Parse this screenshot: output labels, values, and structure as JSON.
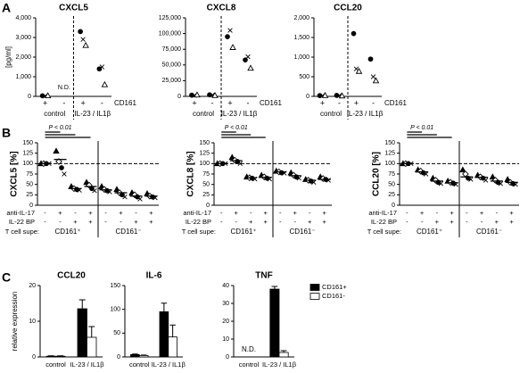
{
  "panels": [
    "A",
    "B",
    "C"
  ],
  "chart_data": [
    {
      "type": "scatter",
      "title": "CXCL5",
      "ylabel": "[pg/ml]",
      "categories": [
        "+",
        "-",
        "+",
        "-"
      ],
      "row_label": "CD161",
      "group_labels": [
        "control",
        "IL-23 / IL1β"
      ],
      "separator": "dashed",
      "ylim": [
        0,
        4000
      ],
      "yticks": [
        0,
        {
          "value": 1000,
          "label": "1,000"
        },
        {
          "value": 2000,
          "label": "2,000"
        },
        {
          "value": 3000,
          "label": "3,000"
        },
        {
          "value": 4000,
          "label": "4,000"
        }
      ],
      "series": [
        {
          "marker": "circle",
          "filled": true,
          "values": [
            30,
            null,
            3300,
            1400
          ],
          "value_labels": [
            null,
            "N.D.",
            null,
            null
          ]
        },
        {
          "marker": "cross",
          "filled": false,
          "values": [
            20,
            null,
            2900,
            1500
          ]
        },
        {
          "marker": "triangle",
          "filled": false,
          "values": [
            40,
            null,
            2600,
            600
          ]
        }
      ]
    },
    {
      "type": "scatter",
      "title": "CXCL8",
      "categories": [
        "+",
        "-",
        "+",
        "-"
      ],
      "row_label": "CD161",
      "group_labels": [
        "control",
        "IL-23 / IL1β"
      ],
      "separator": "dashed",
      "ylim": [
        0,
        125000
      ],
      "yticks": [
        0,
        {
          "value": 25000,
          "label": "25,000"
        },
        {
          "value": 50000,
          "label": "50,000"
        },
        {
          "value": 75000,
          "label": "75,000"
        },
        {
          "value": 100000,
          "label": "100,000"
        },
        {
          "value": 125000,
          "label": "125,000"
        }
      ],
      "series": [
        {
          "marker": "circle",
          "filled": true,
          "values": [
            2000,
            2500,
            95000,
            58000
          ]
        },
        {
          "marker": "cross",
          "filled": false,
          "values": [
            1500,
            2000,
            105000,
            63000
          ]
        },
        {
          "marker": "triangle",
          "filled": false,
          "values": [
            2500,
            1500,
            78000,
            45000
          ]
        }
      ]
    },
    {
      "type": "scatter",
      "title": "CCL20",
      "categories": [
        "+",
        "-",
        "+",
        "-"
      ],
      "row_label": "CD161",
      "group_labels": [
        "control",
        "IL-23 / IL1β"
      ],
      "separator": "dashed",
      "ylim": [
        0,
        2000
      ],
      "yticks": [
        0,
        500,
        {
          "value": 1000,
          "label": "1,000"
        },
        {
          "value": 1500,
          "label": "1,500"
        },
        {
          "value": 2000,
          "label": "2,000"
        }
      ],
      "series": [
        {
          "marker": "circle",
          "filled": true,
          "values": [
            20,
            25,
            1600,
            950
          ]
        },
        {
          "marker": "cross",
          "filled": false,
          "values": [
            15,
            20,
            700,
            500
          ]
        },
        {
          "marker": "triangle",
          "filled": false,
          "values": [
            25,
            15,
            640,
            400
          ]
        }
      ]
    },
    {
      "type": "scatter",
      "ylabel": "CXCL5 [%]",
      "ylim": [
        0,
        150
      ],
      "yticks": [
        0,
        25,
        50,
        75,
        100,
        125,
        150
      ],
      "reference_line": 100,
      "separator": "solid",
      "significance": "P < 0.01",
      "rows": [
        {
          "label": "anti-IL-17",
          "values": [
            "-",
            "+",
            "-",
            "+",
            "-",
            "+",
            "-",
            "+"
          ]
        },
        {
          "label": "IL-22 BP",
          "values": [
            "-",
            "-",
            "+",
            "+",
            "-",
            "-",
            "+",
            "+"
          ]
        }
      ],
      "group_row_label": "T cell supe:",
      "group_labels": [
        "CD161⁺",
        "CD161⁻"
      ],
      "means": [
        100,
        110,
        40,
        45,
        37,
        30,
        22,
        22
      ],
      "series": [
        {
          "marker": "triangle",
          "filled": true,
          "values": [
            100,
            130,
            45,
            55,
            45,
            38,
            30,
            28
          ]
        },
        {
          "marker": "diamond",
          "filled": false,
          "values": [
            100,
            105,
            40,
            48,
            38,
            30,
            25,
            22
          ]
        },
        {
          "marker": "circle",
          "filled": true,
          "values": [
            100,
            90,
            38,
            40,
            35,
            25,
            20,
            20
          ]
        },
        {
          "marker": "cross",
          "filled": false,
          "values": [
            100,
            75,
            36,
            35,
            32,
            20,
            15,
            18
          ]
        }
      ]
    },
    {
      "type": "scatter",
      "ylabel": "CXCL8 [%]",
      "ylim": [
        0,
        150
      ],
      "yticks": [
        0,
        25,
        50,
        75,
        100,
        125,
        150
      ],
      "reference_line": 100,
      "separator": "solid",
      "significance": "P < 0.01",
      "rows": [
        {
          "label": "anti-IL-17",
          "values": [
            "-",
            "+",
            "-",
            "+",
            "-",
            "+",
            "-",
            "+"
          ]
        },
        {
          "label": "IL-22 BP",
          "values": [
            "-",
            "-",
            "+",
            "+",
            "-",
            "-",
            "+",
            "+"
          ]
        }
      ],
      "group_row_label": "T cell supe:",
      "group_labels": [
        "CD161⁺",
        "CD161⁻"
      ],
      "means": [
        100,
        107,
        66,
        67,
        80,
        71,
        60,
        62
      ],
      "series": [
        {
          "marker": "triangle",
          "filled": true,
          "values": [
            100,
            115,
            68,
            72,
            82,
            78,
            62,
            68
          ]
        },
        {
          "marker": "diamond",
          "filled": false,
          "values": [
            100,
            108,
            66,
            68,
            80,
            72,
            60,
            64
          ]
        },
        {
          "marker": "circle",
          "filled": true,
          "values": [
            100,
            105,
            65,
            65,
            78,
            68,
            58,
            62
          ]
        },
        {
          "marker": "cross",
          "filled": false,
          "values": [
            100,
            100,
            63,
            63,
            77,
            65,
            55,
            60
          ]
        }
      ]
    },
    {
      "type": "scatter",
      "ylabel": "CCL20 [%]",
      "ylim": [
        0,
        150
      ],
      "yticks": [
        0,
        25,
        50,
        75,
        100,
        125,
        150
      ],
      "reference_line": 100,
      "separator": "solid",
      "significance": "P < 0.01",
      "rows": [
        {
          "label": "anti-IL-17",
          "values": [
            "-",
            "+",
            "-",
            "+",
            "-",
            "+",
            "-",
            "+"
          ]
        },
        {
          "label": "IL-22 BP",
          "values": [
            "-",
            "-",
            "+",
            "+",
            "-",
            "-",
            "+",
            "+"
          ]
        }
      ],
      "group_row_label": "T cell supe:",
      "group_labels": [
        "CD161⁺",
        "CD161⁻"
      ],
      "means": [
        100,
        80,
        58,
        54,
        68,
        67,
        58,
        55
      ],
      "series": [
        {
          "marker": "triangle",
          "filled": true,
          "values": [
            100,
            85,
            65,
            58,
            85,
            72,
            68,
            62
          ]
        },
        {
          "marker": "diamond",
          "filled": false,
          "values": [
            100,
            82,
            60,
            55,
            75,
            68,
            60,
            55
          ]
        },
        {
          "marker": "circle",
          "filled": true,
          "values": [
            100,
            78,
            55,
            53,
            65,
            65,
            55,
            52
          ]
        },
        {
          "marker": "cross",
          "filled": false,
          "values": [
            100,
            75,
            52,
            50,
            62,
            60,
            52,
            50
          ]
        }
      ]
    },
    {
      "type": "bar",
      "title": "CCL20",
      "ylabel": "relative expression",
      "categories": [
        "control",
        "IL-23 / IL1β"
      ],
      "ylim": [
        0,
        20
      ],
      "yticks": [
        0,
        10,
        20
      ],
      "series": [
        {
          "color": "#000000",
          "values": [
            0.2,
            13.5
          ],
          "errors": [
            0.1,
            2.5
          ]
        },
        {
          "color": "#ffffff",
          "values": [
            0.2,
            5.5
          ],
          "errors": [
            0.1,
            3
          ]
        }
      ]
    },
    {
      "type": "bar",
      "title": "IL-6",
      "categories": [
        "control",
        "IL-23 / IL1β"
      ],
      "ylim": [
        0,
        150
      ],
      "yticks": [
        0,
        50,
        100,
        150
      ],
      "series": [
        {
          "color": "#000000",
          "values": [
            5,
            95
          ],
          "errors": [
            1,
            18
          ]
        },
        {
          "color": "#ffffff",
          "values": [
            3,
            42
          ],
          "errors": [
            1,
            25
          ]
        }
      ]
    },
    {
      "type": "bar",
      "title": "TNF",
      "categories": [
        "control",
        "IL-23 / IL1β"
      ],
      "ylim": [
        0,
        40
      ],
      "yticks": [
        0,
        10,
        20,
        30,
        40
      ],
      "legend": true,
      "series": [
        {
          "name": "CD161+",
          "color": "#000000",
          "values": [
            null,
            38
          ],
          "errors": [
            null,
            1.5
          ],
          "value_labels": [
            "N.D.",
            null
          ]
        },
        {
          "name": "CD161-",
          "color": "#ffffff",
          "values": [
            null,
            2.5
          ],
          "errors": [
            null,
            1
          ]
        }
      ]
    }
  ]
}
